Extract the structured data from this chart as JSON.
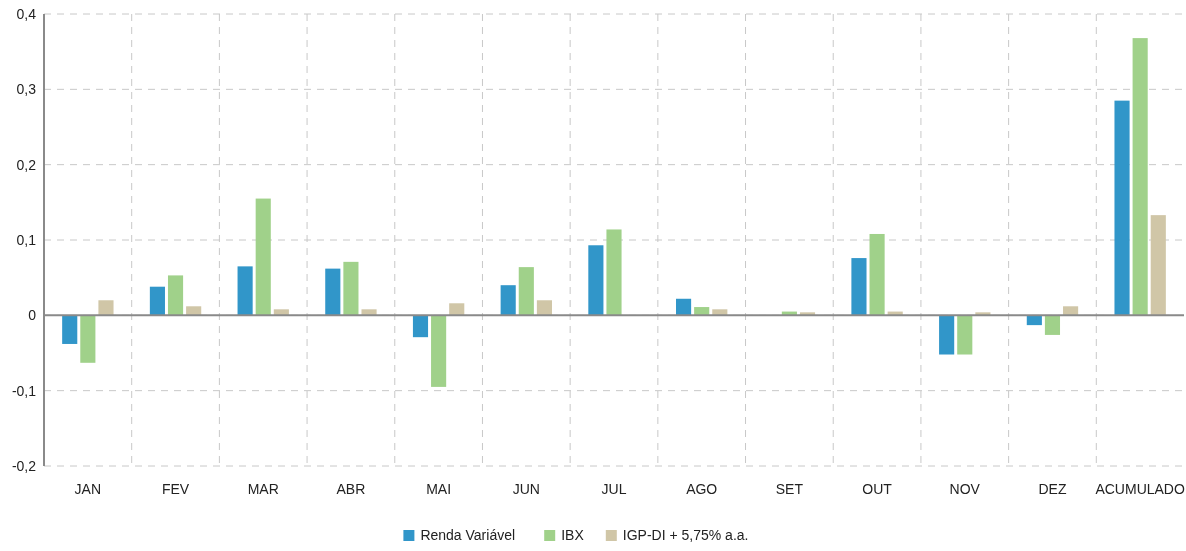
{
  "chart_data": {
    "type": "bar",
    "categories": [
      "JAN",
      "FEV",
      "MAR",
      "ABR",
      "MAI",
      "JUN",
      "JUL",
      "AGO",
      "SET",
      "OUT",
      "NOV",
      "DEZ",
      "ACUMULADO"
    ],
    "series": [
      {
        "name": "Renda Variável",
        "color": "#3196c9",
        "values": [
          -0.038,
          0.038,
          0.065,
          0.062,
          -0.029,
          0.04,
          0.093,
          0.022,
          null,
          0.076,
          -0.052,
          -0.013,
          0.285
        ]
      },
      {
        "name": "IBX",
        "color": "#a0d18a",
        "values": [
          -0.063,
          0.053,
          0.155,
          0.071,
          -0.095,
          0.064,
          0.114,
          0.011,
          0.005,
          0.108,
          -0.052,
          -0.026,
          0.368
        ]
      },
      {
        "name": "IGP-DI + 5,75% a.a.",
        "color": "#d0c6a7",
        "values": [
          0.02,
          0.012,
          0.008,
          0.008,
          0.016,
          0.02,
          0,
          0.008,
          0.004,
          0.005,
          0.004,
          0.012,
          0.133
        ]
      }
    ],
    "ylim": [
      -0.2,
      0.4
    ],
    "yticks": [
      {
        "value": -0.2,
        "label": "-0,2"
      },
      {
        "value": -0.1,
        "label": "-0,1"
      },
      {
        "value": 0,
        "label": "0"
      },
      {
        "value": 0.1,
        "label": "0,1"
      },
      {
        "value": 0.2,
        "label": "0,2"
      },
      {
        "value": 0.3,
        "label": "0,3"
      },
      {
        "value": 0.4,
        "label": "0,4"
      }
    ],
    "grid": true,
    "legend": "bottom"
  }
}
